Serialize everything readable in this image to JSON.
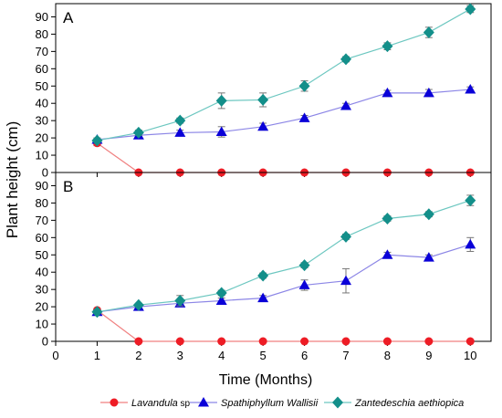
{
  "figure": {
    "y_axis_label": "Plant height (cm)",
    "x_axis_label": "Time (Months)"
  },
  "legend": {
    "entries": [
      {
        "prefix": "Lavandula",
        "suffix": " sp",
        "italic_prefix": true,
        "italic_suffix": false
      },
      {
        "prefix": "Spathiphyllum Wallisii",
        "suffix": "",
        "italic_prefix": true,
        "italic_suffix": false
      },
      {
        "prefix": "Zantedeschia aethiopica",
        "suffix": "",
        "italic_prefix": true,
        "italic_suffix": false
      }
    ]
  },
  "colors": {
    "lavandula_marker": "#ee1c25",
    "lavandula_line": "#f08080",
    "spathiphyllum_marker": "#0a00d8",
    "spathiphyllum_line": "#8c86e6",
    "zantedeschia_marker": "#138f8a",
    "zantedeschia_line": "#6cc7c0",
    "error_bar": "#777777",
    "axis": "#000000"
  },
  "chart_data": [
    {
      "type": "line",
      "panel_label": "A",
      "xlabel": "Time (Months)",
      "ylabel": "Plant height (cm)",
      "xlim": [
        0,
        10.5
      ],
      "ylim": [
        0,
        95
      ],
      "x_ticks": [
        0,
        1,
        2,
        3,
        4,
        5,
        6,
        7,
        8,
        9,
        10
      ],
      "y_ticks": [
        0,
        10,
        20,
        30,
        40,
        50,
        60,
        70,
        80,
        90
      ],
      "x_ticks_shown": false,
      "legend_position": "bottom",
      "grid": false,
      "x": [
        1,
        2,
        3,
        4,
        5,
        6,
        7,
        8,
        9,
        10
      ],
      "series": [
        {
          "name": "Lavandula sp",
          "marker": "circle",
          "color_key": "lavandula",
          "values": [
            17,
            0,
            0,
            0,
            0,
            0,
            0,
            0,
            0,
            0
          ],
          "errors": [
            1.5,
            0,
            0,
            0,
            0,
            0,
            0,
            0,
            0,
            0
          ]
        },
        {
          "name": "Spathiphyllum Wallisii",
          "marker": "triangle",
          "color_key": "spathiphyllum",
          "values": [
            19,
            21.5,
            23,
            23.5,
            26.5,
            31.5,
            38.5,
            46,
            46,
            48
          ],
          "errors": [
            1,
            1,
            1.5,
            3,
            2,
            1.5,
            1.5,
            1.5,
            2,
            1.5
          ]
        },
        {
          "name": "Zantedeschia aethiopica",
          "marker": "diamond",
          "color_key": "zantedeschia",
          "values": [
            18.5,
            23,
            30,
            41.5,
            42,
            50,
            65.5,
            73,
            81,
            94.5
          ],
          "errors": [
            1,
            1.5,
            1.5,
            4.5,
            4,
            3,
            1.5,
            2,
            3,
            2
          ]
        }
      ]
    },
    {
      "type": "line",
      "panel_label": "B",
      "xlabel": "Time (Months)",
      "ylabel": "Plant height (cm)",
      "xlim": [
        0,
        10.5
      ],
      "ylim": [
        0,
        95
      ],
      "x_ticks": [
        0,
        1,
        2,
        3,
        4,
        5,
        6,
        7,
        8,
        9,
        10
      ],
      "y_ticks": [
        0,
        10,
        20,
        30,
        40,
        50,
        60,
        70,
        80,
        90
      ],
      "x_ticks_shown": true,
      "legend_position": "bottom",
      "grid": false,
      "x": [
        1,
        2,
        3,
        4,
        5,
        6,
        7,
        8,
        9,
        10
      ],
      "series": [
        {
          "name": "Lavandula sp",
          "marker": "circle",
          "color_key": "lavandula",
          "values": [
            18,
            0,
            0,
            0,
            0,
            0,
            0,
            0,
            0,
            0
          ],
          "errors": [
            1,
            0,
            0,
            0,
            0,
            0,
            0,
            0,
            0,
            0
          ]
        },
        {
          "name": "Spathiphyllum Wallisii",
          "marker": "triangle",
          "color_key": "spathiphyllum",
          "values": [
            17,
            20,
            22,
            23.5,
            25,
            32.5,
            35,
            50,
            48.5,
            56
          ],
          "errors": [
            1,
            1,
            1,
            1.5,
            1.5,
            3,
            7,
            1.5,
            1.5,
            4
          ]
        },
        {
          "name": "Zantedeschia aethiopica",
          "marker": "diamond",
          "color_key": "zantedeschia",
          "values": [
            17,
            21,
            23.5,
            28,
            38,
            44,
            60.5,
            71,
            73.5,
            81.5
          ],
          "errors": [
            1,
            1,
            3,
            1.5,
            1.5,
            1.5,
            1.5,
            1.5,
            1.5,
            3
          ]
        }
      ]
    }
  ]
}
